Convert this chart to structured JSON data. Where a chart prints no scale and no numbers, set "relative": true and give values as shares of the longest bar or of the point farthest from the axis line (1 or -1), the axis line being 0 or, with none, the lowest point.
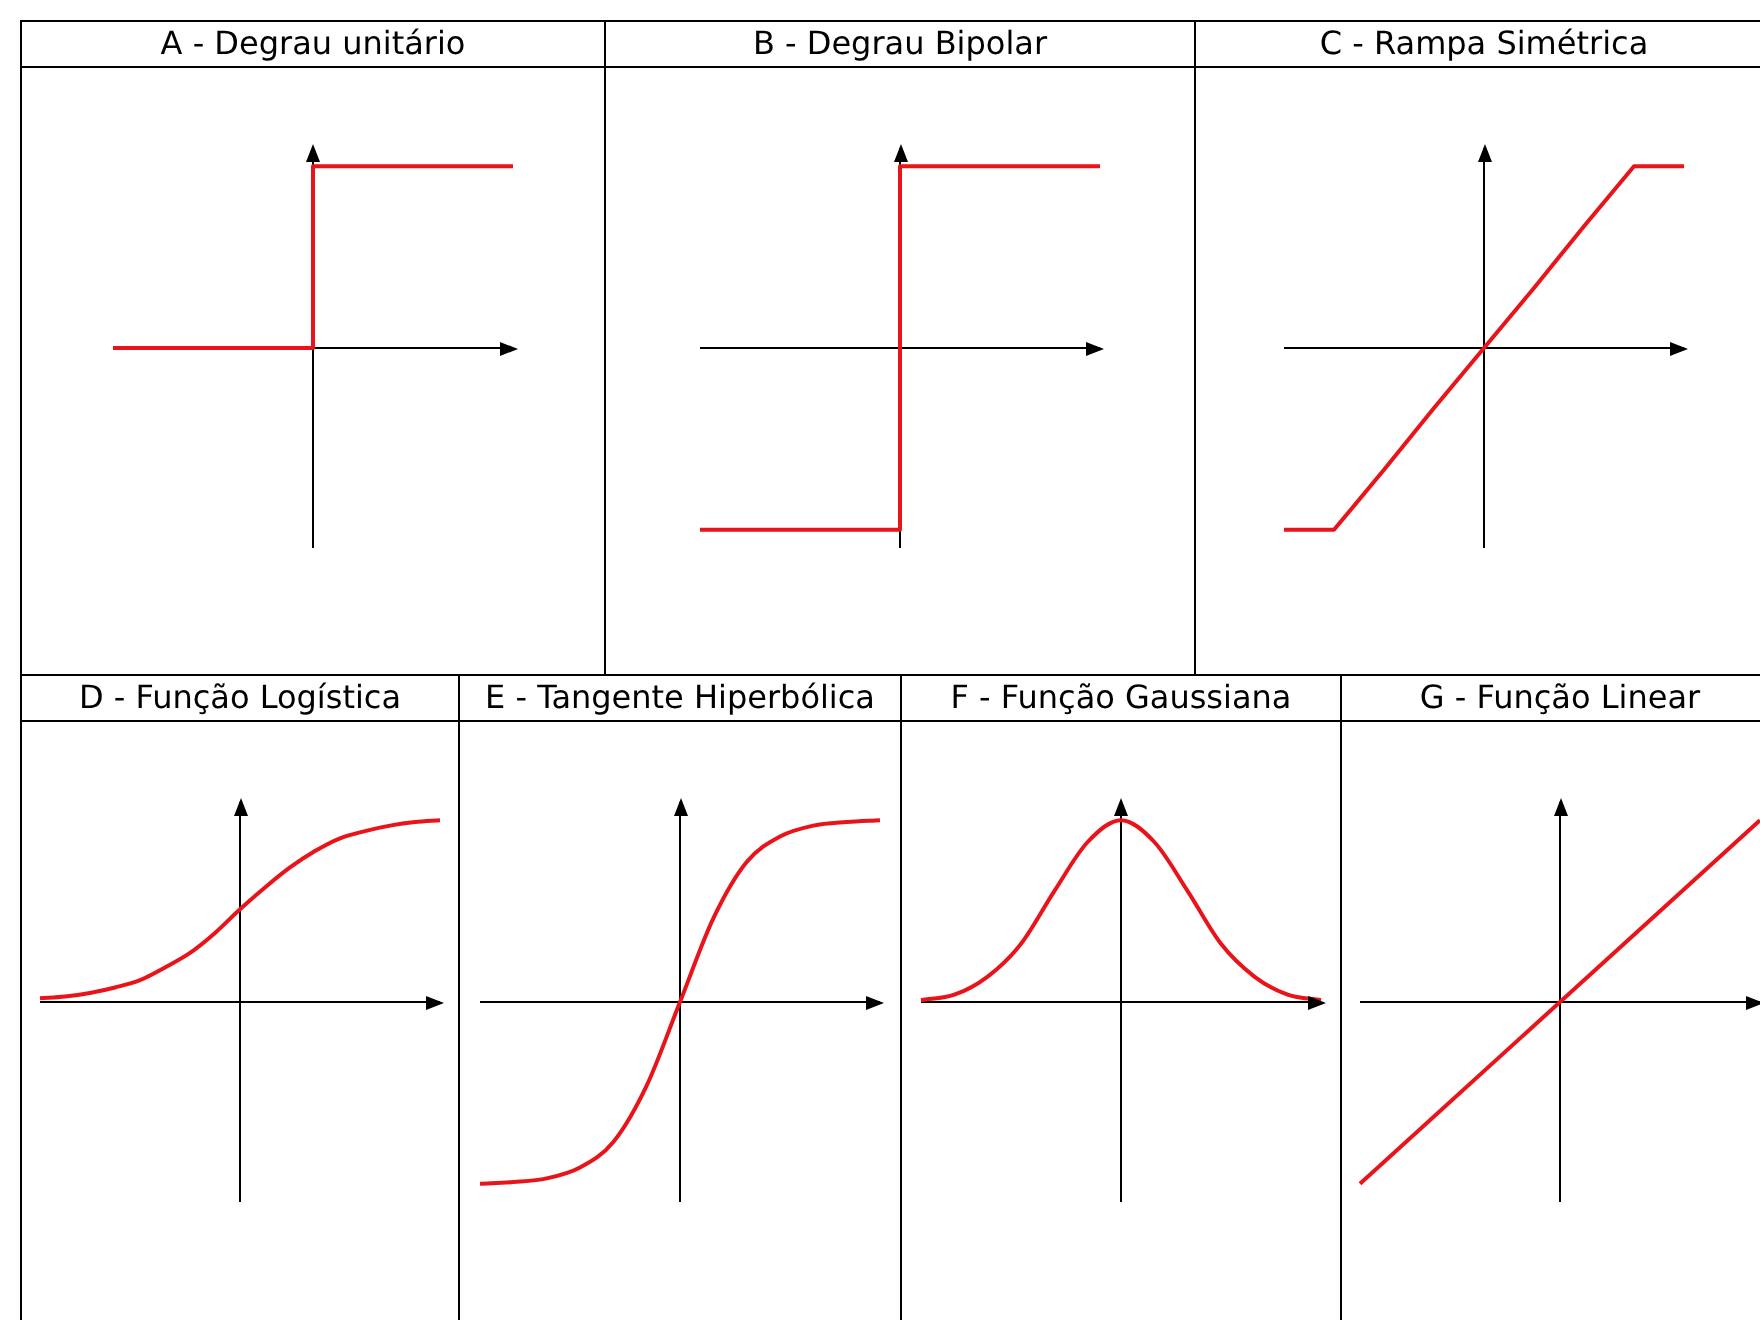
{
  "chart_data": [
    {
      "type": "step",
      "title": "A - Degrau unitário",
      "categories": [
        null,
        null,
        null
      ],
      "values": [
        0,
        1,
        1
      ],
      "color": "#e8141a",
      "relative": true
    },
    {
      "type": "step",
      "title": "B - Degrau Bipolar",
      "categories": [
        null,
        null,
        null
      ],
      "values": [
        -1,
        1,
        1
      ],
      "color": "#e8141a",
      "relative": true
    },
    {
      "type": "line",
      "title": "C - Rampa Simétrica",
      "categories": [
        null,
        null,
        null,
        null,
        null,
        null,
        null,
        null,
        null
      ],
      "values": [
        -1,
        -1,
        -0.67,
        -0.33,
        0,
        0.33,
        0.67,
        1,
        1
      ],
      "color": "#e8141a",
      "relative": true
    },
    {
      "type": "line",
      "title": "D - Função Logística",
      "categories": [
        null,
        null,
        null,
        null,
        null,
        null,
        null,
        null,
        null,
        null,
        null,
        null,
        null,
        null,
        null,
        null,
        null
      ],
      "values": [
        0.02,
        0.03,
        0.05,
        0.08,
        0.12,
        0.19,
        0.27,
        0.38,
        0.51,
        0.63,
        0.74,
        0.83,
        0.9,
        0.94,
        0.97,
        0.99,
        1
      ],
      "color": "#e8141a",
      "relative": true
    },
    {
      "type": "line",
      "title": "E - Tangente Hiperbólica",
      "categories": [
        null,
        null,
        null,
        null,
        null,
        null,
        null,
        null,
        null,
        null,
        null,
        null,
        null
      ],
      "values": [
        -1,
        -0.99,
        -0.97,
        -0.91,
        -0.77,
        -0.46,
        0,
        0.46,
        0.77,
        0.91,
        0.97,
        0.99,
        1
      ],
      "color": "#e8141a",
      "relative": true
    },
    {
      "type": "line",
      "title": "F - Função Gaussiana",
      "categories": [
        null,
        null,
        null,
        null,
        null,
        null,
        null,
        null,
        null,
        null,
        null,
        null,
        null
      ],
      "values": [
        0.01,
        0.04,
        0.14,
        0.32,
        0.61,
        0.88,
        1,
        0.88,
        0.61,
        0.32,
        0.14,
        0.04,
        0.01
      ],
      "color": "#e8141a",
      "relative": true
    },
    {
      "type": "line",
      "title": "G - Função Linear",
      "categories": [
        null,
        null,
        null
      ],
      "values": [
        -1,
        0,
        1
      ],
      "color": "#e8141a",
      "relative": true
    }
  ]
}
